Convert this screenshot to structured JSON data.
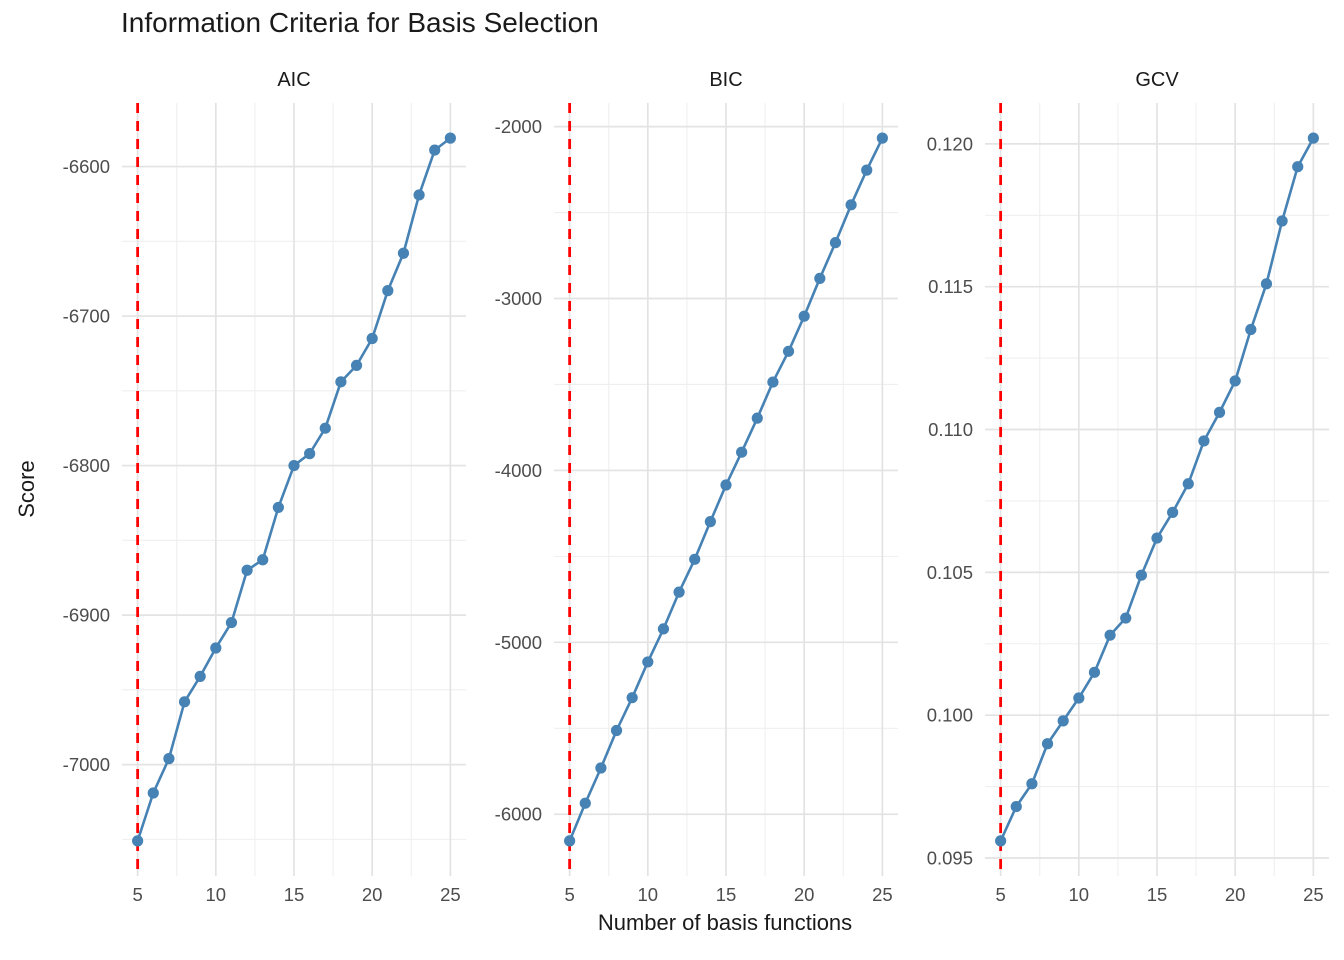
{
  "figure": {
    "title": "Information Criteria for Basis Selection",
    "x_axis_title": "Number of basis functions",
    "y_axis_title": "Score"
  },
  "colors": {
    "series": "#4682B4",
    "reference_line": "#FF0000",
    "grid_major": "#E3E3E3",
    "grid_minor": "#EFEFEF",
    "tick_text": "#4D4D4D",
    "text": "#1A1A1A",
    "background": "#FFFFFF"
  },
  "chart_data": {
    "type": "line",
    "title": "Information Criteria for Basis Selection",
    "xlabel": "Number of basis functions",
    "ylabel": "Score",
    "legend": "none",
    "grid": "on",
    "facets": 3,
    "x": [
      5,
      6,
      7,
      8,
      9,
      10,
      11,
      12,
      13,
      14,
      15,
      16,
      17,
      18,
      19,
      20,
      21,
      22,
      23,
      24,
      25
    ],
    "xlim": [
      4,
      26
    ],
    "x_ticks": {
      "values": [
        5,
        10,
        15,
        20,
        25
      ],
      "labels": [
        "5",
        "10",
        "15",
        "20",
        "25"
      ]
    },
    "reference_vline_x": 5,
    "panels": [
      {
        "label": "AIC",
        "values": [
          -7051,
          -7019,
          -6996,
          -6958,
          -6941,
          -6922,
          -6905,
          -6870,
          -6863,
          -6828,
          -6800,
          -6792,
          -6775,
          -6744,
          -6733,
          -6715,
          -6683,
          -6658,
          -6619,
          -6589,
          -6581
        ],
        "y_ticks": {
          "values": [
            -6600,
            -6700,
            -6800,
            -6900,
            -7000
          ],
          "labels": [
            "-6600",
            "-6700",
            "-6800",
            "-6900",
            "-7000"
          ]
        }
      },
      {
        "label": "BIC",
        "values": [
          -6155,
          -5936,
          -5731,
          -5513,
          -5322,
          -5114,
          -4922,
          -4708,
          -4517,
          -4298,
          -4085,
          -3894,
          -3696,
          -3486,
          -3307,
          -3103,
          -2883,
          -2675,
          -2455,
          -2253,
          -2067
        ],
        "y_ticks": {
          "values": [
            -2000,
            -3000,
            -4000,
            -5000,
            -6000
          ],
          "labels": [
            "-2000",
            "-3000",
            "-4000",
            "-5000",
            "-6000"
          ]
        }
      },
      {
        "label": "GCV",
        "values": [
          0.0956,
          0.0968,
          0.0976,
          0.099,
          0.0998,
          0.1006,
          0.1015,
          0.1028,
          0.1034,
          0.1049,
          0.1062,
          0.1071,
          0.1081,
          0.1096,
          0.1106,
          0.1117,
          0.1135,
          0.1151,
          0.1173,
          0.1192,
          0.1202
        ],
        "y_ticks": {
          "values": [
            0.12,
            0.115,
            0.11,
            0.105,
            0.1,
            0.095
          ],
          "labels": [
            "0.120",
            "0.115",
            "0.110",
            "0.105",
            "0.100",
            "0.095"
          ]
        }
      }
    ]
  }
}
